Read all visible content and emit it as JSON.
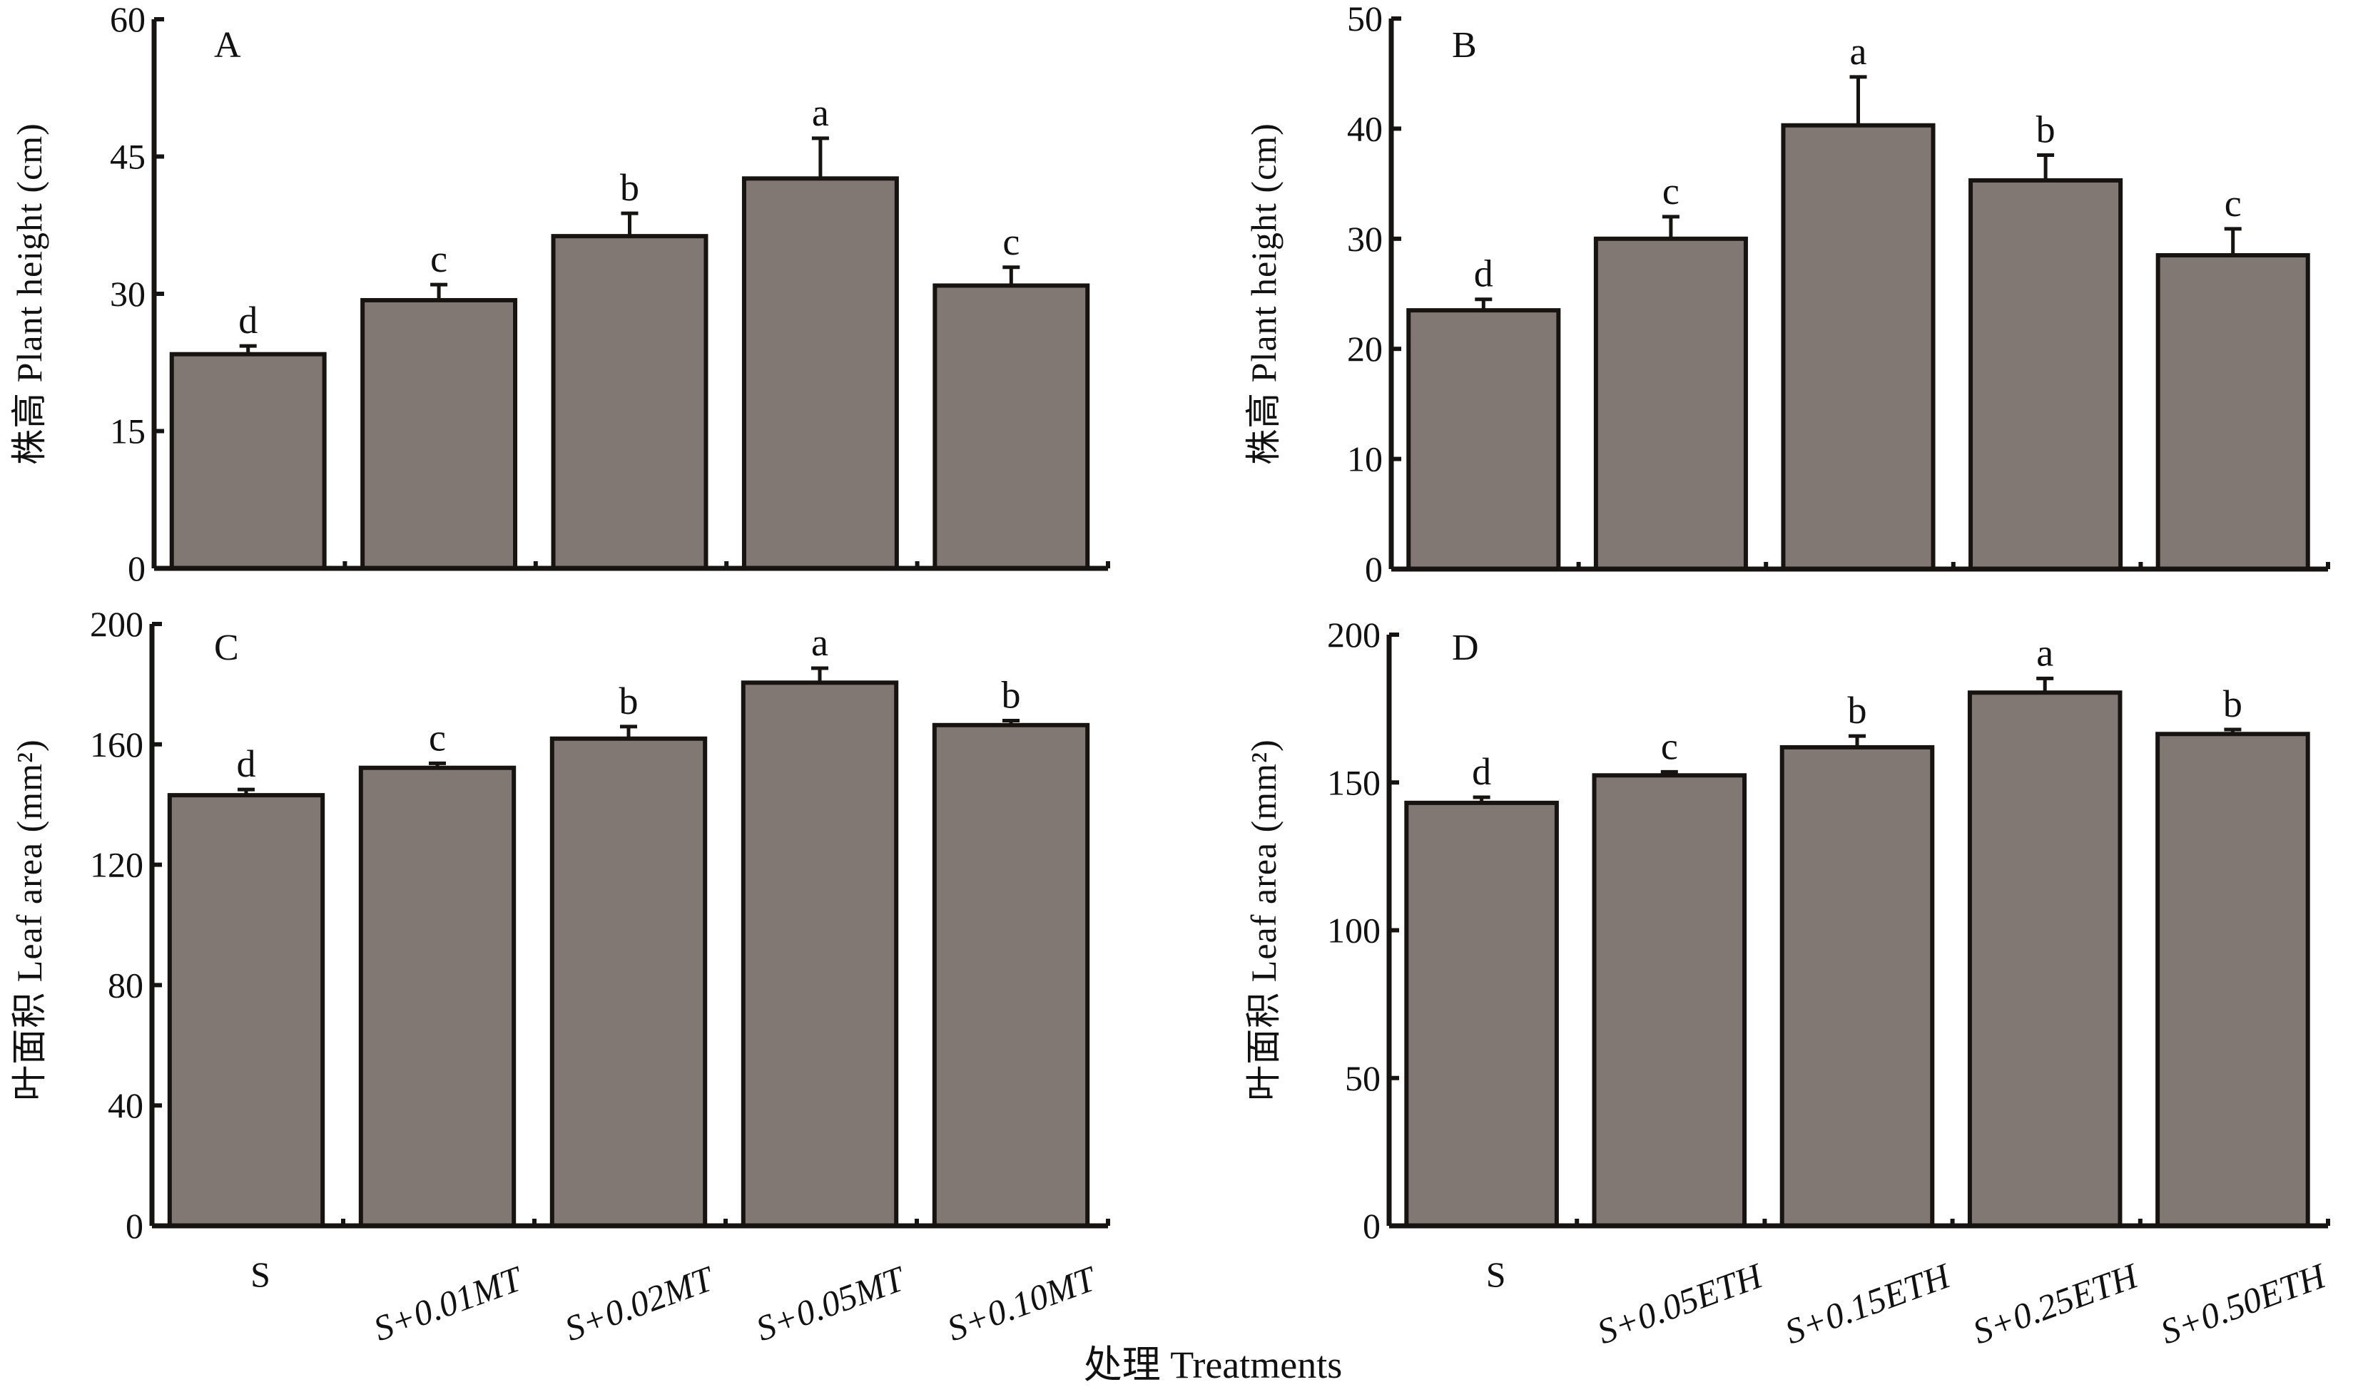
{
  "figure": {
    "x_title": "处理 Treatments",
    "bar_color": "#817874",
    "line_color": "#161311"
  },
  "chart_data": [
    {
      "panel": "A",
      "type": "bar",
      "title": "",
      "ylabel": "株高 Plant height (cm)",
      "xlabel": "",
      "ylim": [
        0,
        60
      ],
      "yticks": [
        0,
        15,
        30,
        45,
        60
      ],
      "grid": false,
      "categories": [
        "S",
        "S+0.01MT",
        "S+0.02MT",
        "S+0.05MT",
        "S+0.10MT"
      ],
      "values": [
        23.4,
        29.3,
        36.3,
        42.6,
        30.9
      ],
      "errors": [
        0.9,
        1.7,
        2.5,
        4.4,
        2.0
      ],
      "significance": [
        "d",
        "c",
        "b",
        "a",
        "c"
      ]
    },
    {
      "panel": "B",
      "type": "bar",
      "title": "",
      "ylabel": "株高 Plant height (cm)",
      "xlabel": "",
      "ylim": [
        0,
        50
      ],
      "yticks": [
        0,
        10,
        20,
        30,
        40,
        50
      ],
      "grid": false,
      "categories": [
        "S",
        "S+0.05ETH",
        "S+0.15ETH",
        "S+0.25ETH",
        "S+0.50ETH"
      ],
      "values": [
        23.5,
        30.0,
        40.3,
        35.3,
        28.5
      ],
      "errors": [
        1.0,
        2.0,
        4.4,
        2.3,
        2.4
      ],
      "significance": [
        "d",
        "c",
        "a",
        "b",
        "c"
      ]
    },
    {
      "panel": "C",
      "type": "bar",
      "title": "",
      "ylabel": "叶面积 Leaf area (mm²)",
      "xlabel": "处理 Treatments",
      "ylim": [
        0,
        200
      ],
      "yticks": [
        0,
        40,
        80,
        120,
        160,
        200
      ],
      "grid": false,
      "categories": [
        "S",
        "S+0.01MT",
        "S+0.02MT",
        "S+0.05MT",
        "S+0.10MT"
      ],
      "values": [
        143.1,
        152.2,
        161.9,
        180.5,
        166.4
      ],
      "errors": [
        1.9,
        1.5,
        4.0,
        4.8,
        1.5
      ],
      "significance": [
        "d",
        "c",
        "b",
        "a",
        "b"
      ]
    },
    {
      "panel": "D",
      "type": "bar",
      "title": "",
      "ylabel": "叶面积 Leaf area (mm²)",
      "xlabel": "处理 Treatments",
      "ylim": [
        0,
        200
      ],
      "yticks": [
        0,
        50,
        100,
        150,
        200
      ],
      "grid": false,
      "categories": [
        "S",
        "S+0.05ETH",
        "S+0.15ETH",
        "S+0.25ETH",
        "S+0.50ETH"
      ],
      "values": [
        143.1,
        152.4,
        161.9,
        180.4,
        166.4
      ],
      "errors": [
        1.9,
        1.2,
        3.8,
        4.8,
        1.5
      ],
      "significance": [
        "d",
        "c",
        "b",
        "a",
        "b"
      ]
    }
  ]
}
